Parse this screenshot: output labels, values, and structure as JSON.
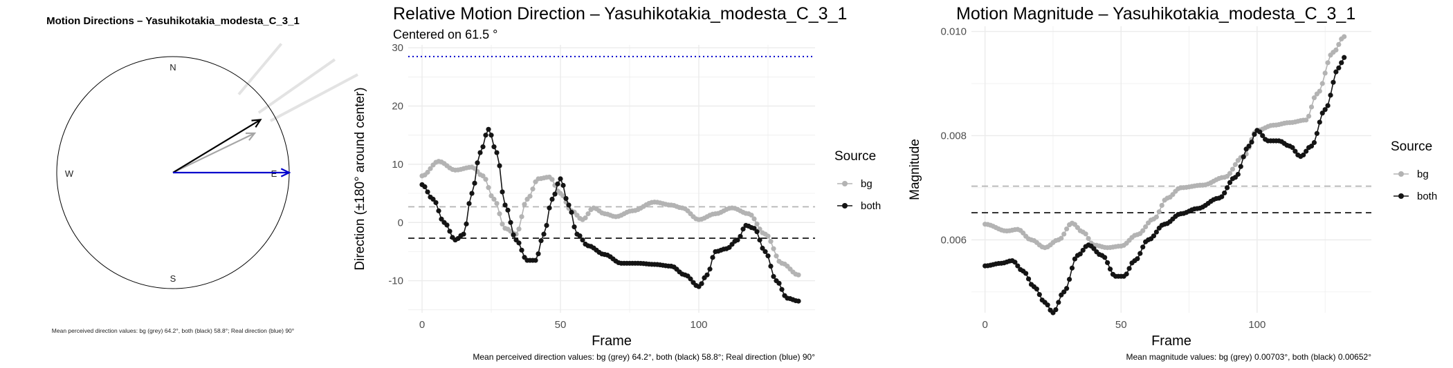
{
  "colors": {
    "bg": "#b3b3b3",
    "both": "#141414",
    "real": "#0000cc",
    "grid": "#ebebeb",
    "rays": "#e3e3e3"
  },
  "compass": {
    "title": "Motion Directions – Yasuhikotakia_modesta_C_3_1",
    "labels": {
      "n": "N",
      "e": "E",
      "s": "S",
      "w": "W"
    },
    "caption": "Mean perceived direction values: bg (grey) 64.2°, both (black) 58.8°; Real direction (blue) 90°",
    "arrows": [
      {
        "name": "bg",
        "angle_deg": 64.2,
        "length": 0.78
      },
      {
        "name": "both",
        "angle_deg": 58.8,
        "length": 0.88
      },
      {
        "name": "real",
        "angle_deg": 90,
        "length": 1.0
      }
    ],
    "rays": [
      {
        "angle_deg": 40,
        "from": 0.88,
        "to": 1.45
      },
      {
        "angle_deg": 55,
        "from": 0.9,
        "to": 1.7
      },
      {
        "angle_deg": 62,
        "from": 0.95,
        "to": 1.8
      }
    ]
  },
  "chart_data": [
    {
      "type": "line",
      "title": "Relative Motion Direction – Yasuhikotakia_modesta_C_3_1",
      "subtitle": "Centered on  61.5 °",
      "xlabel": "Frame",
      "ylabel": "Direction (±180° around center)",
      "xlim": [
        -5,
        142
      ],
      "ylim": [
        -15.5,
        30.5
      ],
      "xticks": [
        0,
        50,
        100
      ],
      "yticks": [
        -10,
        0,
        10,
        20,
        30
      ],
      "legend": {
        "title": "Source",
        "position": "right",
        "entries": [
          "bg",
          "both"
        ]
      },
      "hlines": [
        {
          "y": 28.5,
          "style": "dotted",
          "color": "real"
        },
        {
          "y": 2.7,
          "style": "dashed",
          "color": "bg"
        },
        {
          "y": -2.7,
          "style": "dashed",
          "color": "both"
        }
      ],
      "series": [
        {
          "name": "bg",
          "color_key": "bg",
          "knots": [
            [
              0,
              8
            ],
            [
              6,
              10.5
            ],
            [
              12,
              9
            ],
            [
              18,
              9.5
            ],
            [
              22,
              8
            ],
            [
              26,
              4
            ],
            [
              30,
              -1
            ],
            [
              34,
              -2
            ],
            [
              38,
              4
            ],
            [
              42,
              7.5
            ],
            [
              46,
              7.8
            ],
            [
              50,
              5
            ],
            [
              54,
              2
            ],
            [
              58,
              0.5
            ],
            [
              62,
              2.5
            ],
            [
              66,
              1.5
            ],
            [
              70,
              1
            ],
            [
              76,
              2
            ],
            [
              84,
              3.5
            ],
            [
              90,
              3
            ],
            [
              94,
              2.5
            ],
            [
              100,
              0.5
            ],
            [
              106,
              1.5
            ],
            [
              112,
              2.5
            ],
            [
              118,
              1.5
            ],
            [
              124,
              -2
            ],
            [
              130,
              -7
            ],
            [
              136,
              -9
            ]
          ]
        },
        {
          "name": "both",
          "color_key": "both",
          "knots": [
            [
              0,
              6.5
            ],
            [
              4,
              4
            ],
            [
              8,
              0
            ],
            [
              12,
              -3
            ],
            [
              15,
              -2
            ],
            [
              18,
              5
            ],
            [
              21,
              12
            ],
            [
              24,
              16
            ],
            [
              27,
              12
            ],
            [
              30,
              3
            ],
            [
              34,
              -3
            ],
            [
              38,
              -6.5
            ],
            [
              41,
              -6.5
            ],
            [
              44,
              -2
            ],
            [
              47,
              4
            ],
            [
              50,
              7.5
            ],
            [
              53,
              3
            ],
            [
              56,
              -2
            ],
            [
              60,
              -4
            ],
            [
              66,
              -5.5
            ],
            [
              72,
              -7
            ],
            [
              78,
              -7
            ],
            [
              84,
              -7.2
            ],
            [
              90,
              -7.5
            ],
            [
              95,
              -9
            ],
            [
              100,
              -11
            ],
            [
              103,
              -9
            ],
            [
              106,
              -5
            ],
            [
              110,
              -4.5
            ],
            [
              114,
              -3
            ],
            [
              117,
              -0.5
            ],
            [
              120,
              -1
            ],
            [
              124,
              -5
            ],
            [
              128,
              -10
            ],
            [
              132,
              -13
            ],
            [
              136,
              -13.5
            ]
          ]
        }
      ],
      "caption": "Mean perceived direction values: bg (grey) 64.2°, both (black) 58.8°; Real direction (blue) 90°"
    },
    {
      "type": "line",
      "title": "Motion Magnitude – Yasuhikotakia_modesta_C_3_1",
      "subtitle": "",
      "xlabel": "Frame",
      "ylabel": "Magnitude",
      "xlim": [
        -5,
        142
      ],
      "ylim": [
        0.0046,
        0.0101
      ],
      "xticks": [
        0,
        50,
        100
      ],
      "yticks": [
        0.006,
        0.008,
        0.01
      ],
      "ytick_labels": [
        "0.006",
        "0.008",
        "0.010"
      ],
      "legend": {
        "title": "Source",
        "position": "right",
        "entries": [
          "bg",
          "both"
        ]
      },
      "hlines": [
        {
          "y": 0.00703,
          "style": "dashed",
          "color": "bg"
        },
        {
          "y": 0.00652,
          "style": "dashed",
          "color": "both"
        }
      ],
      "series": [
        {
          "name": "bg",
          "color_key": "bg",
          "knots": [
            [
              0,
              0.0063
            ],
            [
              8,
              0.00617
            ],
            [
              12,
              0.0062
            ],
            [
              17,
              0.006
            ],
            [
              22,
              0.00585
            ],
            [
              27,
              0.006
            ],
            [
              32,
              0.00632
            ],
            [
              36,
              0.00615
            ],
            [
              40,
              0.0059
            ],
            [
              45,
              0.00585
            ],
            [
              50,
              0.00588
            ],
            [
              56,
              0.0061
            ],
            [
              62,
              0.0064
            ],
            [
              67,
              0.0068
            ],
            [
              72,
              0.007
            ],
            [
              80,
              0.00705
            ],
            [
              88,
              0.0072
            ],
            [
              95,
              0.0076
            ],
            [
              100,
              0.0081
            ],
            [
              106,
              0.0082
            ],
            [
              112,
              0.00825
            ],
            [
              118,
              0.0083
            ],
            [
              122,
              0.0088
            ],
            [
              128,
              0.0096
            ],
            [
              132,
              0.0099
            ]
          ]
        },
        {
          "name": "both",
          "color_key": "both",
          "knots": [
            [
              0,
              0.0055
            ],
            [
              6,
              0.00555
            ],
            [
              10,
              0.0056
            ],
            [
              14,
              0.0054
            ],
            [
              18,
              0.0051
            ],
            [
              22,
              0.0048
            ],
            [
              25,
              0.0046
            ],
            [
              29,
              0.005
            ],
            [
              34,
              0.0057
            ],
            [
              38,
              0.0059
            ],
            [
              43,
              0.0057
            ],
            [
              48,
              0.0053
            ],
            [
              51,
              0.0053
            ],
            [
              55,
              0.0056
            ],
            [
              60,
              0.006
            ],
            [
              66,
              0.0063
            ],
            [
              72,
              0.0065
            ],
            [
              78,
              0.0066
            ],
            [
              86,
              0.0068
            ],
            [
              92,
              0.0072
            ],
            [
              97,
              0.0078
            ],
            [
              100,
              0.0081
            ],
            [
              104,
              0.0079
            ],
            [
              108,
              0.0079
            ],
            [
              112,
              0.0078
            ],
            [
              116,
              0.0076
            ],
            [
              120,
              0.0078
            ],
            [
              125,
              0.0085
            ],
            [
              130,
              0.0093
            ],
            [
              132,
              0.0095
            ]
          ]
        }
      ],
      "caption": "Mean magnitude values: bg (grey) 0.00703°, both (black) 0.00652°"
    }
  ]
}
